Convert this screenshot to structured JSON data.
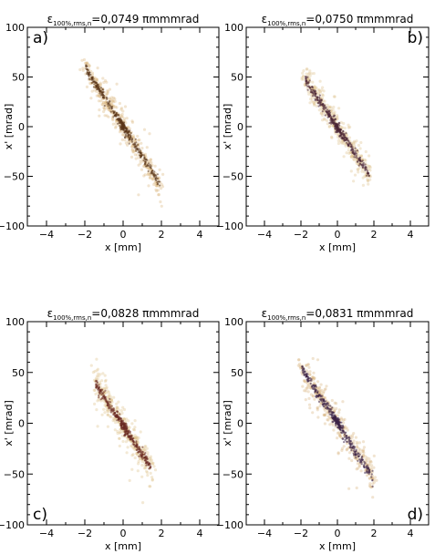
{
  "chart_data": [
    {
      "type": "scatter",
      "panel_label": "a)",
      "title": {
        "symbol": "ε",
        "subscript": "100%,rms,n",
        "value_text": "=0,0749 πmmmrad"
      },
      "xlabel": "x [mm]",
      "ylabel": "x' [mrad]",
      "xlim": [
        -5,
        5
      ],
      "ylim": [
        -100,
        100
      ],
      "xticks": [
        -4,
        -2,
        0,
        2,
        4
      ],
      "yticks": [
        -100,
        -50,
        0,
        50,
        100
      ],
      "label_corner": "top-left",
      "distribution": {
        "x_range": [
          -2.0,
          2.0
        ],
        "xp_at_xmin": 60,
        "xp_at_xmax": -60,
        "core_color": "#5a3418",
        "halo_color": "#d9b47a"
      }
    },
    {
      "type": "scatter",
      "panel_label": "b)",
      "title": {
        "symbol": "ε",
        "subscript": "100%,rms,n",
        "value_text": "=0,0750 πmmmrad"
      },
      "xlabel": "x [mm]",
      "ylabel": "x' [mrad]",
      "xlim": [
        -5,
        5
      ],
      "ylim": [
        -100,
        100
      ],
      "xticks": [
        -4,
        -2,
        0,
        2,
        4
      ],
      "yticks": [
        -100,
        -50,
        0,
        50,
        100
      ],
      "label_corner": "top-right",
      "distribution": {
        "x_range": [
          -1.8,
          1.8
        ],
        "xp_at_xmin": 48,
        "xp_at_xmax": -50,
        "core_color": "#4a2535",
        "halo_color": "#dcc08a"
      }
    },
    {
      "type": "scatter",
      "panel_label": "c)",
      "title": {
        "symbol": "ε",
        "subscript": "100%,rms,n",
        "value_text": "=0,0828 πmmmrad"
      },
      "xlabel": "x [mm]",
      "ylabel": "x' [mrad]",
      "xlim": [
        -5,
        5
      ],
      "ylim": [
        -100,
        100
      ],
      "xticks": [
        -4,
        -2,
        0,
        2,
        4
      ],
      "yticks": [
        -100,
        -50,
        0,
        50,
        100
      ],
      "label_corner": "bottom-left",
      "distribution": {
        "x_range": [
          -1.5,
          1.5
        ],
        "xp_at_xmin": 40,
        "xp_at_xmax": -45,
        "core_color": "#6a2a22",
        "halo_color": "#dcbf88"
      }
    },
    {
      "type": "scatter",
      "panel_label": "d)",
      "title": {
        "symbol": "ε",
        "subscript": "100%,rms,n",
        "value_text": "=0,0831 πmmmrad"
      },
      "xlabel": "x [mm]",
      "ylabel": "x' [mrad]",
      "xlim": [
        -5,
        5
      ],
      "ylim": [
        -100,
        100
      ],
      "xticks": [
        -4,
        -2,
        0,
        2,
        4
      ],
      "yticks": [
        -100,
        -50,
        0,
        50,
        100
      ],
      "label_corner": "bottom-right",
      "distribution": {
        "x_range": [
          -2.0,
          2.0
        ],
        "xp_at_xmin": 55,
        "xp_at_xmax": -55,
        "core_color": "#3a2145",
        "halo_color": "#d8b27c"
      }
    }
  ]
}
